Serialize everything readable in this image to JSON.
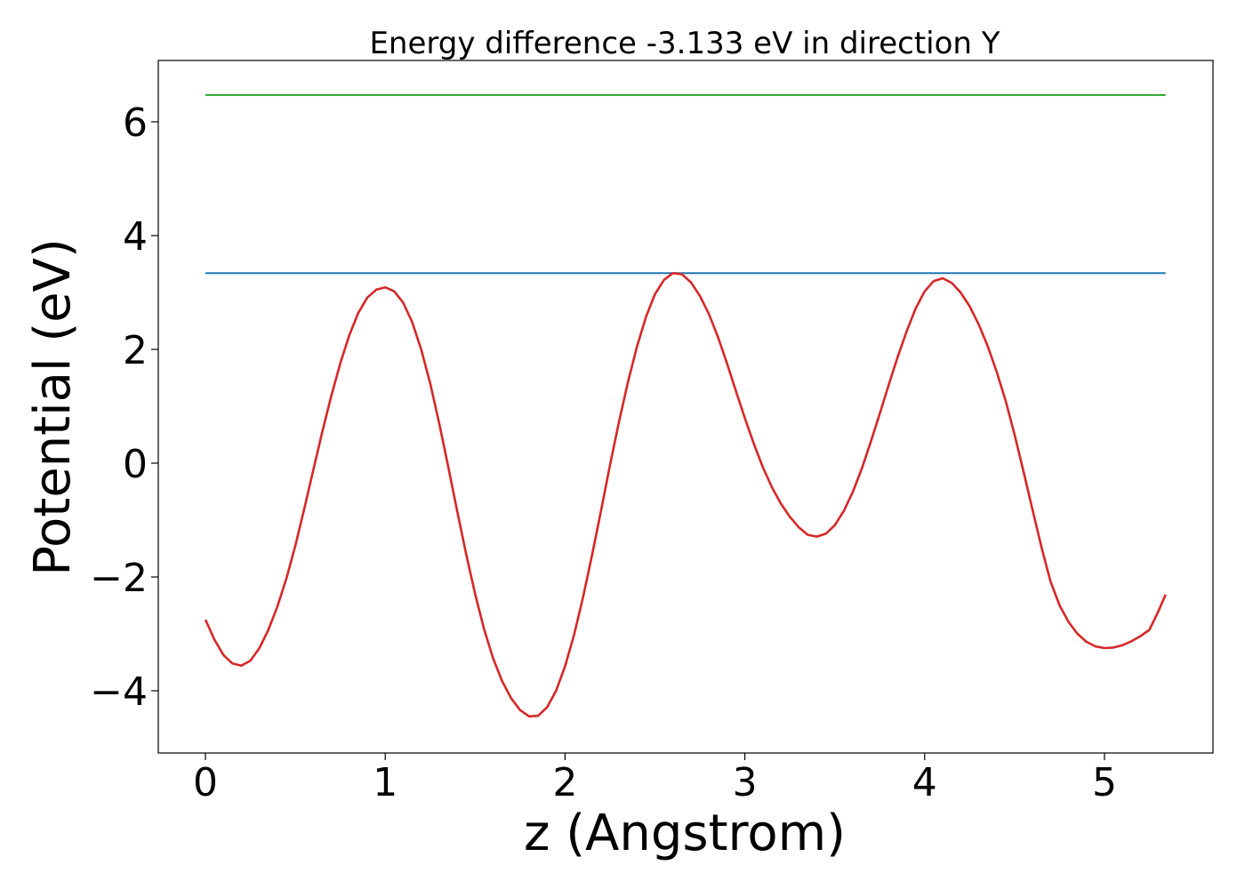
{
  "chart_data": {
    "type": "line",
    "title": "Energy difference -3.133 eV in direction Y",
    "xlabel": "z (Angstrom)",
    "ylabel": "Potential (eV)",
    "xlim": [
      -0.26,
      5.6
    ],
    "ylim": [
      -5.0,
      7.0
    ],
    "xticks": [
      0,
      1,
      2,
      3,
      4,
      5
    ],
    "yticks": [
      -4,
      -2,
      0,
      2,
      4,
      6
    ],
    "xtick_labels": [
      "0",
      "1",
      "2",
      "3",
      "4",
      "5"
    ],
    "ytick_labels": [
      "−4",
      "−2",
      "0",
      "2",
      "4",
      "6"
    ],
    "grid": false,
    "legend": false,
    "series": [
      {
        "color": "#2ca02c",
        "style": "hline",
        "x": [
          0,
          5.34
        ],
        "y": [
          6.47,
          6.47
        ]
      },
      {
        "color": "#1f77b4",
        "style": "hline",
        "x": [
          0,
          5.34
        ],
        "y": [
          3.34,
          3.34
        ]
      },
      {
        "color": "#d62728",
        "style": "line",
        "x": [
          0.0,
          0.05,
          0.1,
          0.15,
          0.2,
          0.25,
          0.3,
          0.35,
          0.4,
          0.45,
          0.5,
          0.55,
          0.6,
          0.65,
          0.7,
          0.75,
          0.8,
          0.85,
          0.9,
          0.95,
          1.0,
          1.05,
          1.1,
          1.15,
          1.2,
          1.25,
          1.3,
          1.35,
          1.4,
          1.45,
          1.5,
          1.55,
          1.6,
          1.65,
          1.7,
          1.75,
          1.8,
          1.85,
          1.9,
          1.95,
          2.0,
          2.05,
          2.1,
          2.15,
          2.2,
          2.25,
          2.3,
          2.35,
          2.4,
          2.45,
          2.5,
          2.55,
          2.6,
          2.65,
          2.7,
          2.75,
          2.8,
          2.85,
          2.9,
          2.95,
          3.0,
          3.05,
          3.1,
          3.15,
          3.2,
          3.25,
          3.3,
          3.35,
          3.4,
          3.45,
          3.5,
          3.55,
          3.6,
          3.65,
          3.7,
          3.75,
          3.8,
          3.85,
          3.9,
          3.95,
          4.0,
          4.05,
          4.1,
          4.15,
          4.2,
          4.25,
          4.3,
          4.35,
          4.4,
          4.45,
          4.5,
          4.55,
          4.6,
          4.65,
          4.7,
          4.75,
          4.8,
          4.85,
          4.9,
          4.95,
          5.0,
          5.05,
          5.1,
          5.15,
          5.2,
          5.25,
          5.3,
          5.34
        ],
        "y": [
          -2.75,
          -3.1,
          -3.37,
          -3.52,
          -3.56,
          -3.47,
          -3.25,
          -2.93,
          -2.52,
          -2.03,
          -1.45,
          -0.8,
          -0.12,
          0.55,
          1.18,
          1.75,
          2.25,
          2.64,
          2.91,
          3.05,
          3.09,
          3.02,
          2.82,
          2.48,
          2.0,
          1.4,
          0.7,
          -0.06,
          -0.84,
          -1.6,
          -2.3,
          -2.92,
          -3.43,
          -3.83,
          -4.13,
          -4.34,
          -4.45,
          -4.44,
          -4.29,
          -4.0,
          -3.57,
          -3.02,
          -2.36,
          -1.62,
          -0.84,
          -0.03,
          0.73,
          1.43,
          2.05,
          2.57,
          2.97,
          3.22,
          3.34,
          3.32,
          3.18,
          2.94,
          2.62,
          2.22,
          1.76,
          1.27,
          0.79,
          0.34,
          -0.07,
          -0.42,
          -0.71,
          -0.94,
          -1.13,
          -1.26,
          -1.29,
          -1.24,
          -1.09,
          -0.84,
          -0.51,
          -0.1,
          0.37,
          0.87,
          1.38,
          1.87,
          2.32,
          2.72,
          3.02,
          3.2,
          3.25,
          3.17,
          3.0,
          2.76,
          2.44,
          2.06,
          1.61,
          1.1,
          0.5,
          -0.15,
          -0.82,
          -1.48,
          -2.08,
          -2.5,
          -2.79,
          -3.0,
          -3.14,
          -3.22,
          -3.25,
          -3.24,
          -3.2,
          -3.13,
          -3.04,
          -2.93,
          -2.6,
          -2.31
        ]
      }
    ]
  }
}
